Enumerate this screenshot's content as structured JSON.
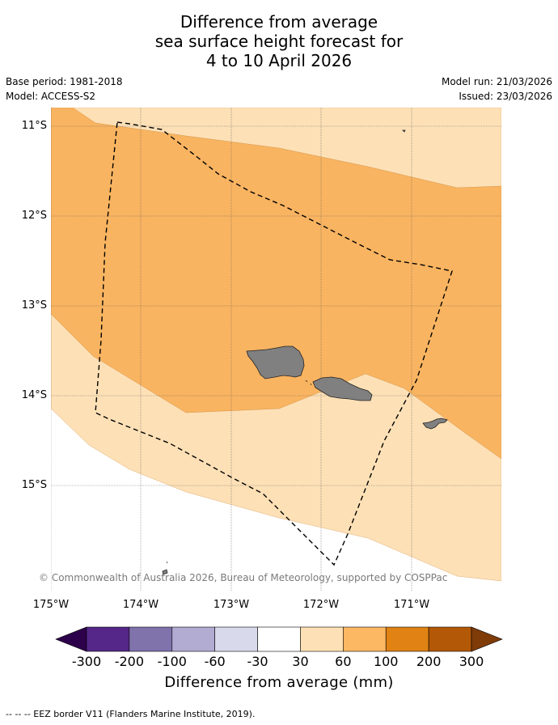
{
  "title": {
    "line1": "Difference from average",
    "line2": "sea surface height forecast for",
    "line3": "4 to 10 April 2026"
  },
  "meta": {
    "base_period": "Base period: 1981-2018",
    "model": "Model: ACCESS-S2",
    "model_run": "Model run: 21/03/2026",
    "issued": "Issued: 23/03/2026"
  },
  "map": {
    "lat_labels": [
      "11°S",
      "12°S",
      "13°S",
      "14°S",
      "15°S"
    ],
    "lon_labels": [
      "175°W",
      "174°W",
      "173°W",
      "172°W",
      "171°W"
    ],
    "copyright": "© Commonwealth of Australia 2026, Bureau of Meteorology, supported by COSPPac",
    "land_color": "#808080",
    "zone_colors": {
      "30_60": "#fde0b6",
      "60_100": "#f9b461"
    }
  },
  "colorbar": {
    "ticks": [
      "-300",
      "-200",
      "-100",
      "-60",
      "-30",
      "30",
      "60",
      "100",
      "200",
      "300"
    ],
    "colors": [
      "#2d004b",
      "#542788",
      "#8073ac",
      "#b2abd2",
      "#d8daeb",
      "#ffffff",
      "#fee0b6",
      "#fdb863",
      "#e08214",
      "#b35806",
      "#7f3b08"
    ],
    "label": "Difference from average (mm)"
  },
  "footer": "--  --  -- EEZ border V11 (Flanders Marine Institute, 2019)."
}
